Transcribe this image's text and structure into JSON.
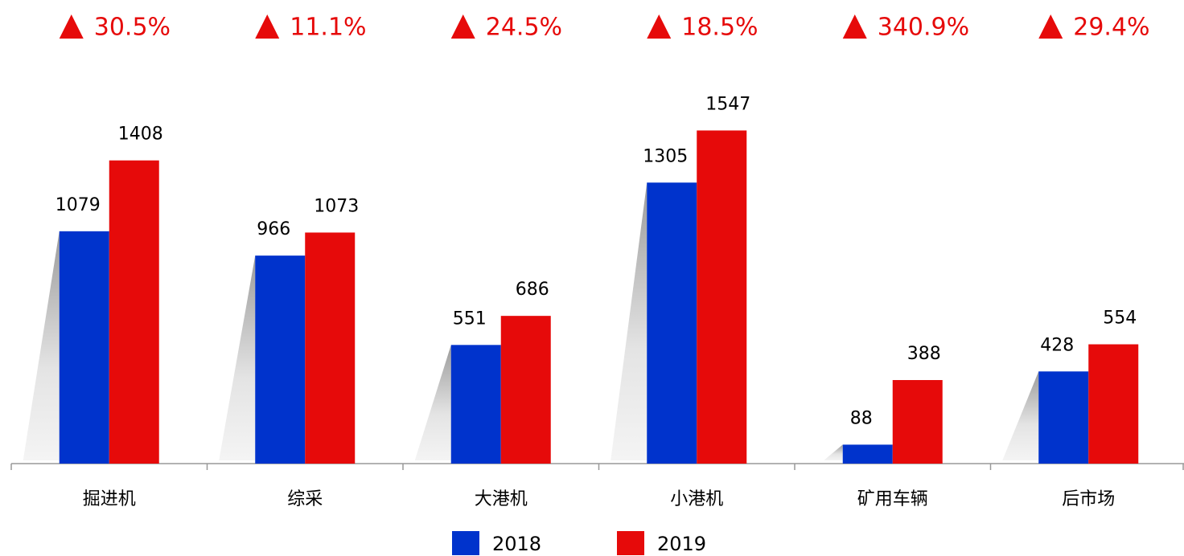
{
  "chart_data": {
    "type": "bar",
    "categories": [
      "掘进机",
      "综采",
      "大港机",
      "小港机",
      "矿用车辆",
      "后市场"
    ],
    "series": [
      {
        "name": "2018",
        "color": "#0033cc",
        "values": [
          1079,
          966,
          551,
          1305,
          88,
          428
        ]
      },
      {
        "name": "2019",
        "color": "#e60a0a",
        "values": [
          1408,
          1073,
          686,
          1547,
          388,
          554
        ]
      }
    ],
    "annotations": [
      {
        "value": 30.5,
        "label": "30.5%"
      },
      {
        "value": 11.1,
        "label": "11.1%"
      },
      {
        "value": 24.5,
        "label": "24.5%"
      },
      {
        "value": 18.5,
        "label": "18.5%"
      },
      {
        "value": 340.9,
        "label": "340.9%"
      },
      {
        "value": 29.4,
        "label": "29.4%"
      }
    ],
    "annotation_color": "#e60a0a",
    "legend": "bottom"
  }
}
